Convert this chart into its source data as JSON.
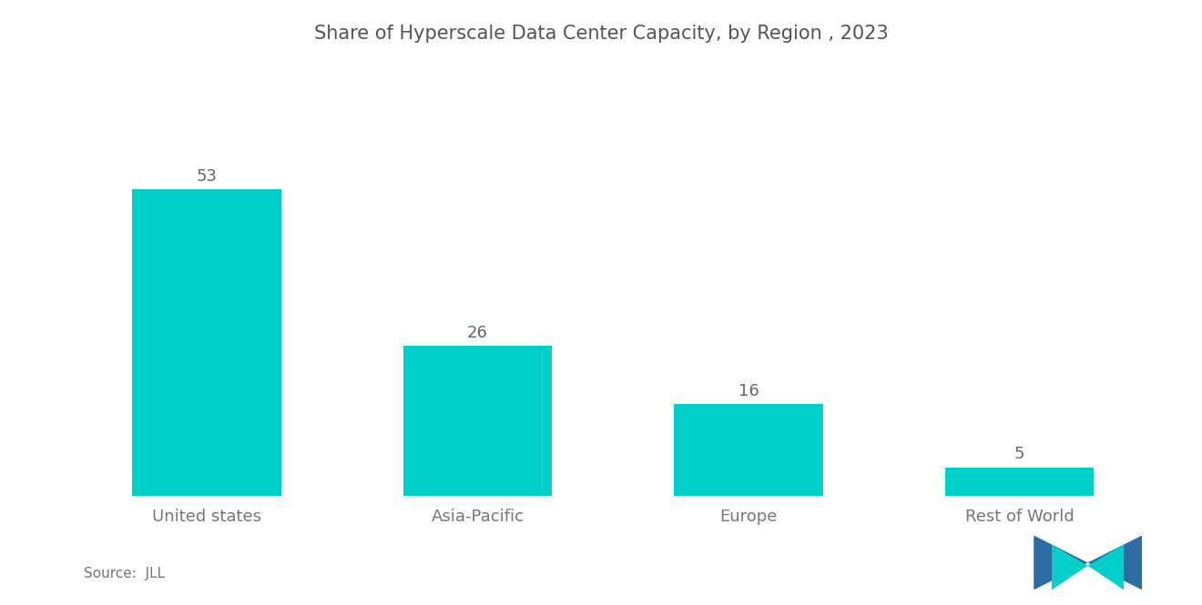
{
  "title": "Share of Hyperscale Data Center Capacity, by Region , 2023",
  "categories": [
    "United states",
    "Asia-Pacific",
    "Europe",
    "Rest of World"
  ],
  "values": [
    53,
    26,
    16,
    5
  ],
  "bar_color": "#00CEC9",
  "background_color": "#ffffff",
  "title_fontsize": 15,
  "label_fontsize": 13,
  "value_fontsize": 13,
  "source_text": "Source:  JLL",
  "ylim": [
    0,
    68
  ],
  "bar_width": 0.55,
  "logo_blue": "#2E6DA4",
  "logo_teal": "#00CEC9"
}
